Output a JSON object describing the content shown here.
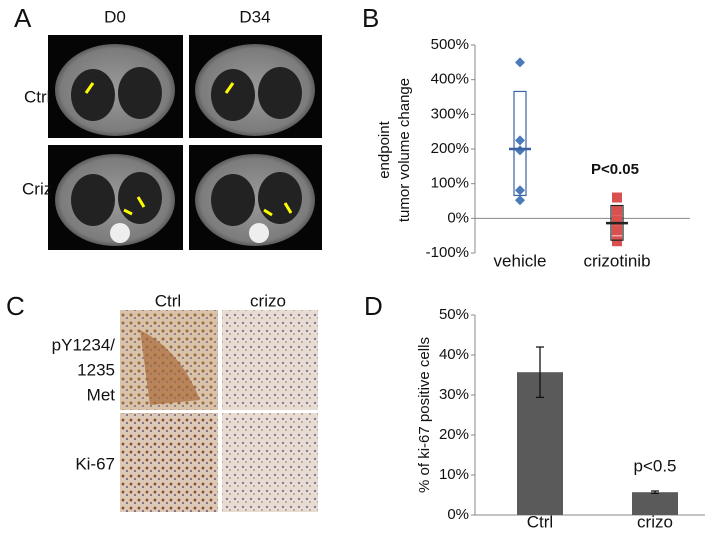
{
  "figure": {
    "panel_labels": [
      "A",
      "B",
      "C",
      "D"
    ],
    "panel_a": {
      "columns": [
        "D0",
        "D34"
      ],
      "rows": [
        "Ctrl",
        "Criz"
      ]
    },
    "panel_c": {
      "columns": [
        "Ctrl",
        "crizo"
      ],
      "rows": [
        [
          "pY1234/",
          "1235",
          "Met"
        ],
        [
          "Ki-67"
        ]
      ]
    }
  },
  "chart_data": [
    {
      "type": "dot-box",
      "y_label": [
        "endpoint",
        "tumor volume change"
      ],
      "categories": [
        "vehicle",
        "crizotinib"
      ],
      "points": [
        [
          450,
          225,
          196,
          81,
          52
        ],
        [
          60,
          23,
          -6,
          -35,
          -66
        ]
      ],
      "box_low": [
        66,
        -63
      ],
      "box_high": [
        366,
        37
      ],
      "mean": [
        200,
        -14
      ],
      "colors": [
        "#4a7ab8",
        "#d9514f"
      ],
      "box_colors": [
        "#3a64a0",
        "#222222"
      ],
      "annotation": "P<0.05",
      "ylim": [
        -100,
        500
      ],
      "yticks": [
        {
          "value": -100,
          "label": "-100%"
        },
        {
          "value": 0,
          "label": "0%"
        },
        {
          "value": 100,
          "label": "100%"
        },
        {
          "value": 200,
          "label": "200%"
        },
        {
          "value": 300,
          "label": "300%"
        },
        {
          "value": 400,
          "label": "400%"
        },
        {
          "value": 500,
          "label": "500%"
        }
      ]
    },
    {
      "type": "bar",
      "y_label": [
        "% of ki-67 positive cells"
      ],
      "categories": [
        "Ctrl",
        "crizo"
      ],
      "values": [
        35.7,
        5.7
      ],
      "errors": [
        6.3,
        0.3
      ],
      "color": "#5a5a5a",
      "annotation": "p<0.5",
      "ylim": [
        0,
        50
      ],
      "yticks": [
        {
          "value": 0,
          "label": "0%"
        },
        {
          "value": 10,
          "label": "10%"
        },
        {
          "value": 20,
          "label": "20%"
        },
        {
          "value": 30,
          "label": "30%"
        },
        {
          "value": 40,
          "label": "40%"
        },
        {
          "value": 50,
          "label": "50%"
        }
      ]
    }
  ]
}
